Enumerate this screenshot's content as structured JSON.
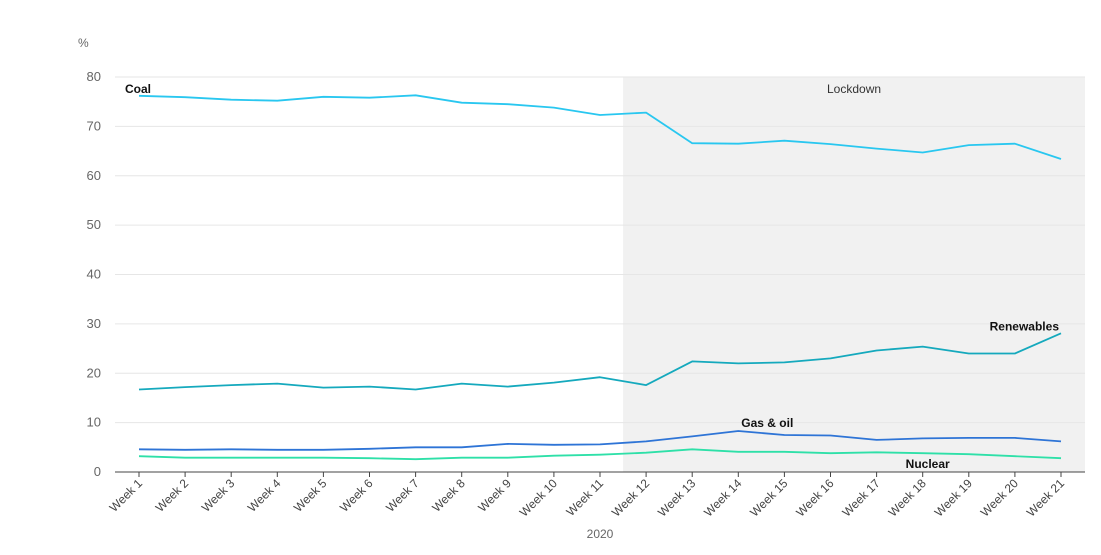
{
  "chart_data": {
    "type": "line",
    "ylabel": "%",
    "xlabel": "2020",
    "ylim": [
      0,
      80
    ],
    "yticks": [
      0,
      10,
      20,
      30,
      40,
      50,
      60,
      70,
      80
    ],
    "grid": true,
    "categories": [
      "Week 1",
      "Week 2",
      "Week 3",
      "Week 4",
      "Week 5",
      "Week 6",
      "Week 7",
      "Week 8",
      "Week 9",
      "Week 10",
      "Week 11",
      "Week 12",
      "Week 13",
      "Week 14",
      "Week 15",
      "Week 16",
      "Week 17",
      "Week 18",
      "Week 19",
      "Week 20",
      "Week 21"
    ],
    "series": [
      {
        "name": "Coal",
        "color": "#29c7f0",
        "values": [
          76.2,
          75.9,
          75.4,
          75.2,
          76.0,
          75.8,
          76.3,
          74.8,
          74.5,
          73.8,
          72.3,
          72.8,
          66.6,
          66.5,
          67.1,
          66.4,
          65.5,
          64.7,
          66.2,
          66.5,
          63.4
        ]
      },
      {
        "name": "Renewables",
        "color": "#15a9bd",
        "values": [
          16.7,
          17.2,
          17.6,
          17.9,
          17.1,
          17.3,
          16.7,
          17.9,
          17.3,
          18.1,
          19.2,
          17.6,
          22.4,
          22.0,
          22.2,
          23.0,
          24.6,
          25.4,
          24.0,
          24.0,
          28.1
        ]
      },
      {
        "name": "Gas & oil",
        "color": "#2e74d6",
        "values": [
          4.6,
          4.5,
          4.6,
          4.5,
          4.5,
          4.7,
          5.0,
          5.0,
          5.7,
          5.5,
          5.6,
          6.2,
          7.2,
          8.3,
          7.5,
          7.4,
          6.5,
          6.8,
          6.9,
          6.9,
          6.2
        ]
      },
      {
        "name": "Nuclear",
        "color": "#2ee0a8",
        "values": [
          3.2,
          2.9,
          2.9,
          2.9,
          2.9,
          2.8,
          2.6,
          2.9,
          2.9,
          3.3,
          3.5,
          3.9,
          4.6,
          4.1,
          4.1,
          3.8,
          4.0,
          3.8,
          3.6,
          3.2,
          2.8
        ]
      }
    ],
    "annotations": [
      {
        "text": "Lockdown",
        "from": "Week 12",
        "to": "Week 21",
        "fill": "#f1f1f1"
      }
    ]
  }
}
